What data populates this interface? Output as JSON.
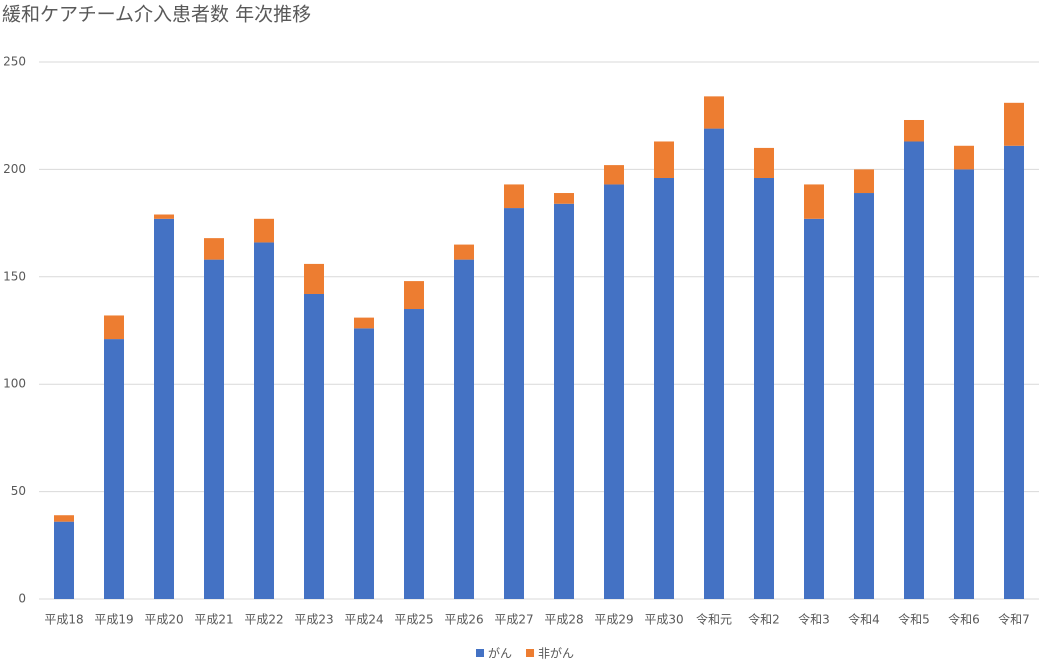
{
  "chart_data": {
    "type": "stacked_bar",
    "title": "緩和ケアチーム介入患者数 年次推移",
    "categories": [
      "平成18",
      "平成19",
      "平成20",
      "平成21",
      "平成22",
      "平成23",
      "平成24",
      "平成25",
      "平成26",
      "平成27",
      "平成28",
      "平成29",
      "平成30",
      "令和元",
      "令和2",
      "令和3",
      "令和4",
      "令和5",
      "令和6",
      "令和7"
    ],
    "series": [
      {
        "name": "がん",
        "color": "#4472c4",
        "values": [
          36,
          121,
          177,
          158,
          166,
          142,
          126,
          135,
          158,
          182,
          184,
          193,
          196,
          219,
          196,
          177,
          189,
          213,
          200,
          211
        ]
      },
      {
        "name": "非がん",
        "color": "#ed7d31",
        "values": [
          3,
          11,
          2,
          10,
          11,
          14,
          5,
          13,
          7,
          11,
          5,
          9,
          17,
          15,
          14,
          16,
          11,
          10,
          11,
          20
        ]
      }
    ],
    "ylim": [
      0,
      250
    ],
    "yticks": [
      0,
      50,
      100,
      150,
      200,
      250
    ],
    "grid": true,
    "legend": "bottom"
  }
}
